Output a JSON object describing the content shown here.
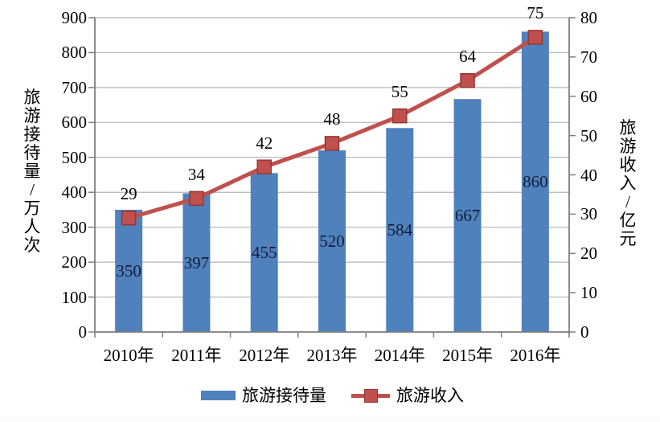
{
  "chart_data": {
    "type": "bar",
    "subtype": "bar+line combo",
    "categories": [
      "2010年",
      "2011年",
      "2012年",
      "2013年",
      "2014年",
      "2015年",
      "2016年"
    ],
    "series": [
      {
        "name": "旅游接待量",
        "type": "bar",
        "axis": "left",
        "unit": "万人次",
        "values": [
          350,
          397,
          455,
          520,
          584,
          667,
          860
        ],
        "color": "#4f81bd",
        "label_color": "#141c38"
      },
      {
        "name": "旅游收入",
        "type": "line",
        "axis": "right",
        "unit": "亿元",
        "values": [
          29,
          34,
          42,
          48,
          55,
          64,
          75
        ],
        "color": "#c0504d",
        "marker": "square",
        "marker_border": "#943634",
        "label_color": "#000000"
      }
    ],
    "left_axis": {
      "title": "旅游接待量/万人次",
      "min": 0,
      "max": 900,
      "step": 100
    },
    "right_axis": {
      "title": "旅游收入/亿元",
      "min": 0,
      "max": 80,
      "step": 10
    },
    "grid": true,
    "grid_color": "#b5b5b5",
    "axis_color": "#7f7f7f",
    "legend_position": "bottom",
    "title": ""
  },
  "legend": {
    "bar_label": "旅游接待量",
    "line_label": "旅游收入"
  }
}
